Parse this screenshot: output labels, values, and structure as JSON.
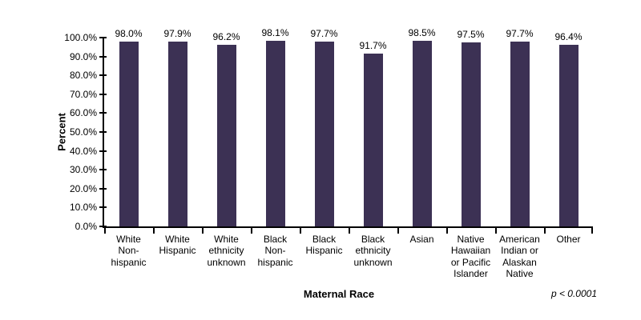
{
  "chart_data": {
    "type": "bar",
    "title": "",
    "xlabel": "Maternal Race",
    "ylabel": "Percent",
    "annotation": "p < 0.0001",
    "ylim": [
      0,
      100
    ],
    "y_ticks": [
      "0.0%",
      "10.0%",
      "20.0%",
      "30.0%",
      "40.0%",
      "50.0%",
      "60.0%",
      "70.0%",
      "80.0%",
      "90.0%",
      "100.0%"
    ],
    "grid": false,
    "legend_position": "none",
    "bar_color": "#3c3154",
    "axis_color": "#000000",
    "categories": [
      "White\nNon-\nhispanic",
      "White\nHispanic",
      "White\nethnicity\nunknown",
      "Black\nNon-\nhispanic",
      "Black\nHispanic",
      "Black\nethnicity\nunknown",
      "Asian",
      "Native\nHawaiian\nor Pacific\nIslander",
      "American\nIndian or\nAlaskan\nNative",
      "Other"
    ],
    "values": [
      98.0,
      97.9,
      96.2,
      98.1,
      97.7,
      91.7,
      98.5,
      97.5,
      97.7,
      96.4
    ],
    "value_labels": [
      "98.0%",
      "97.9%",
      "96.2%",
      "98.1%",
      "97.7%",
      "91.7%",
      "98.5%",
      "97.5%",
      "97.7%",
      "96.4%"
    ]
  }
}
